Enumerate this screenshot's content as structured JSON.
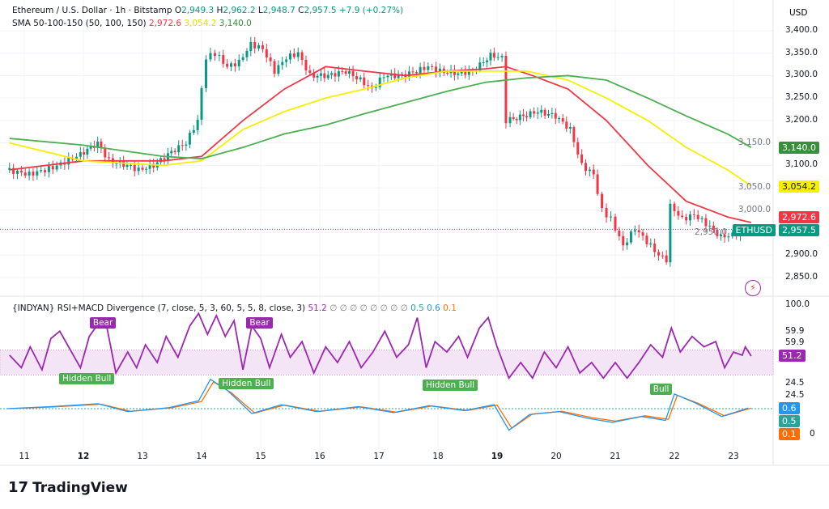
{
  "header": {
    "symbol": "Ethereum / U.S. Dollar · 1h · Bitstamp",
    "o_label": "O",
    "o": "2,949.3",
    "h_label": "H",
    "h": "2,962.2",
    "l_label": "L",
    "l": "2,948.7",
    "c_label": "C",
    "c": "2,957.5",
    "change": "+7.9 (+0.27%)",
    "sma_title": "SMA 50-100-150 (50, 100, 150)",
    "sma50": "2,972.6",
    "sma100": "3,054.2",
    "sma150": "3,140.0",
    "currency": "USD"
  },
  "indicator": {
    "title": "{INDYAN} RSI+MACD Divergence (7, close, 5, 3, 60, 5, 5, 8, close, 3)",
    "rsi": "51.2",
    "placeholders": "∅ ∅ ∅ ∅ ∅ ∅ ∅ ∅",
    "v1": "0.5",
    "v2": "0.6",
    "v3": "0.1"
  },
  "tags": {
    "sma150": "3,140.0",
    "sma100": "3,054.2",
    "sma50": "2,972.6",
    "symbol": "ETHUSD",
    "price": "2,957.5",
    "rsi": "51.2",
    "macd1": "0.6",
    "macd2": "0.5",
    "macd3": "0.1"
  },
  "colors": {
    "up": "#089981",
    "down": "#f23645",
    "sma50": "#f23645",
    "sma100": "#f5f000",
    "sma150": "#4caf50",
    "rsi": "#9c27b0",
    "macd": "#2196f3",
    "signal": "#ff6d00"
  },
  "footer": {
    "brand": "TradingView"
  },
  "chart_data": {
    "type": "candlestick",
    "price_axis": {
      "ticks": [
        "3,400.0",
        "3,350.0",
        "3,300.0",
        "3,250.0",
        "3,200.0",
        "3,150.0",
        "3,100.0",
        "3,050.0",
        "3,000.0",
        "2,950.0",
        "2,900.0",
        "2,850.0"
      ],
      "range": [
        2830,
        3420
      ]
    },
    "x_axis": {
      "ticks": [
        "11",
        "12",
        "13",
        "14",
        "15",
        "16",
        "17",
        "18",
        "19",
        "20",
        "21",
        "22",
        "23"
      ],
      "range": [
        10.7,
        23.35
      ]
    },
    "close": [
      [
        10.75,
        3090
      ],
      [
        11.15,
        3080
      ],
      [
        11.55,
        3095
      ],
      [
        11.95,
        3120
      ],
      [
        12.3,
        3150
      ],
      [
        12.5,
        3110
      ],
      [
        12.8,
        3100
      ],
      [
        13.0,
        3090
      ],
      [
        13.25,
        3100
      ],
      [
        13.55,
        3130
      ],
      [
        13.8,
        3150
      ],
      [
        14.0,
        3200
      ],
      [
        14.15,
        3340
      ],
      [
        14.3,
        3350
      ],
      [
        14.5,
        3320
      ],
      [
        14.7,
        3330
      ],
      [
        14.9,
        3370
      ],
      [
        15.1,
        3360
      ],
      [
        15.3,
        3310
      ],
      [
        15.5,
        3340
      ],
      [
        15.7,
        3350
      ],
      [
        15.9,
        3300
      ],
      [
        16.2,
        3300
      ],
      [
        16.5,
        3310
      ],
      [
        16.75,
        3290
      ],
      [
        16.95,
        3270
      ],
      [
        17.15,
        3300
      ],
      [
        17.45,
        3300
      ],
      [
        17.7,
        3310
      ],
      [
        17.9,
        3320
      ],
      [
        18.1,
        3310
      ],
      [
        18.4,
        3305
      ],
      [
        18.65,
        3310
      ],
      [
        18.95,
        3345
      ],
      [
        19.15,
        3340
      ],
      [
        19.22,
        3200
      ],
      [
        19.5,
        3210
      ],
      [
        19.75,
        3220
      ],
      [
        20.05,
        3210
      ],
      [
        20.3,
        3180
      ],
      [
        20.5,
        3100
      ],
      [
        20.7,
        3080
      ],
      [
        20.85,
        3000
      ],
      [
        21.0,
        2980
      ],
      [
        21.2,
        2920
      ],
      [
        21.4,
        2960
      ],
      [
        21.6,
        2930
      ],
      [
        21.8,
        2900
      ],
      [
        21.93,
        2890
      ],
      [
        22.0,
        3010
      ],
      [
        22.2,
        2980
      ],
      [
        22.4,
        2990
      ],
      [
        22.6,
        2970
      ],
      [
        22.85,
        2940
      ],
      [
        23.05,
        2945
      ],
      [
        23.25,
        2957.5
      ]
    ],
    "series": [
      {
        "name": "SMA 50",
        "values": [
          [
            10.75,
            3090
          ],
          [
            12.0,
            3110
          ],
          [
            13.35,
            3110
          ],
          [
            14.0,
            3120
          ],
          [
            14.7,
            3200
          ],
          [
            15.4,
            3270
          ],
          [
            16.1,
            3320
          ],
          [
            16.75,
            3310
          ],
          [
            17.45,
            3300
          ],
          [
            18.15,
            3310
          ],
          [
            18.8,
            3315
          ],
          [
            19.15,
            3320
          ],
          [
            19.6,
            3300
          ],
          [
            20.2,
            3270
          ],
          [
            20.85,
            3200
          ],
          [
            21.55,
            3100
          ],
          [
            22.2,
            3020
          ],
          [
            22.9,
            2985
          ],
          [
            23.3,
            2972.6
          ]
        ]
      },
      {
        "name": "SMA 100",
        "values": [
          [
            10.75,
            3150
          ],
          [
            12.0,
            3110
          ],
          [
            13.35,
            3100
          ],
          [
            14.0,
            3110
          ],
          [
            14.7,
            3180
          ],
          [
            15.4,
            3220
          ],
          [
            16.1,
            3250
          ],
          [
            16.75,
            3270
          ],
          [
            17.45,
            3295
          ],
          [
            18.15,
            3310
          ],
          [
            18.8,
            3310
          ],
          [
            19.5,
            3310
          ],
          [
            20.2,
            3290
          ],
          [
            20.85,
            3250
          ],
          [
            21.55,
            3200
          ],
          [
            22.2,
            3140
          ],
          [
            22.9,
            3090
          ],
          [
            23.3,
            3054.2
          ]
        ]
      },
      {
        "name": "SMA 150",
        "values": [
          [
            10.75,
            3160
          ],
          [
            12.0,
            3145
          ],
          [
            13.35,
            3120
          ],
          [
            14.0,
            3115
          ],
          [
            14.7,
            3140
          ],
          [
            15.4,
            3170
          ],
          [
            16.1,
            3190
          ],
          [
            16.75,
            3215
          ],
          [
            17.45,
            3240
          ],
          [
            18.15,
            3265
          ],
          [
            18.8,
            3285
          ],
          [
            19.5,
            3295
          ],
          [
            20.2,
            3300
          ],
          [
            20.85,
            3290
          ],
          [
            21.55,
            3250
          ],
          [
            22.2,
            3210
          ],
          [
            22.9,
            3170
          ],
          [
            23.3,
            3140
          ]
        ]
      }
    ],
    "rsi": {
      "axis_ticks": [
        "100.0",
        "59.9",
        "59.9",
        "24.5",
        "24.5"
      ],
      "band": [
        33,
        57
      ],
      "values": [
        [
          10.75,
          52
        ],
        [
          10.95,
          40
        ],
        [
          11.1,
          60
        ],
        [
          11.3,
          38
        ],
        [
          11.45,
          68
        ],
        [
          11.6,
          75
        ],
        [
          11.8,
          55
        ],
        [
          11.95,
          40
        ],
        [
          12.1,
          70
        ],
        [
          12.25,
          82
        ],
        [
          12.4,
          78
        ],
        [
          12.55,
          35
        ],
        [
          12.75,
          55
        ],
        [
          12.9,
          40
        ],
        [
          13.05,
          62
        ],
        [
          13.25,
          45
        ],
        [
          13.4,
          70
        ],
        [
          13.6,
          50
        ],
        [
          13.8,
          80
        ],
        [
          13.95,
          92
        ],
        [
          14.1,
          72
        ],
        [
          14.25,
          90
        ],
        [
          14.4,
          70
        ],
        [
          14.55,
          85
        ],
        [
          14.7,
          38
        ],
        [
          14.85,
          80
        ],
        [
          15.0,
          68
        ],
        [
          15.15,
          40
        ],
        [
          15.35,
          72
        ],
        [
          15.5,
          50
        ],
        [
          15.7,
          65
        ],
        [
          15.9,
          35
        ],
        [
          16.1,
          60
        ],
        [
          16.3,
          45
        ],
        [
          16.5,
          65
        ],
        [
          16.7,
          40
        ],
        [
          16.9,
          55
        ],
        [
          17.1,
          75
        ],
        [
          17.3,
          50
        ],
        [
          17.5,
          62
        ],
        [
          17.65,
          88
        ],
        [
          17.8,
          40
        ],
        [
          17.95,
          65
        ],
        [
          18.15,
          55
        ],
        [
          18.35,
          70
        ],
        [
          18.5,
          50
        ],
        [
          18.7,
          78
        ],
        [
          18.85,
          88
        ],
        [
          19.0,
          60
        ],
        [
          19.2,
          30
        ],
        [
          19.4,
          45
        ],
        [
          19.6,
          30
        ],
        [
          19.8,
          55
        ],
        [
          20.0,
          40
        ],
        [
          20.2,
          60
        ],
        [
          20.4,
          35
        ],
        [
          20.6,
          45
        ],
        [
          20.8,
          30
        ],
        [
          21.0,
          45
        ],
        [
          21.2,
          30
        ],
        [
          21.4,
          45
        ],
        [
          21.6,
          62
        ],
        [
          21.8,
          50
        ],
        [
          21.95,
          78
        ],
        [
          22.1,
          55
        ],
        [
          22.3,
          70
        ],
        [
          22.5,
          60
        ],
        [
          22.7,
          65
        ],
        [
          22.85,
          40
        ],
        [
          23.0,
          55
        ],
        [
          23.15,
          52
        ],
        [
          23.2,
          60
        ],
        [
          23.3,
          51.2
        ]
      ]
    },
    "macd": {
      "axis_ticks": [
        "0"
      ],
      "values": [
        [
          10.75,
          0
        ],
        [
          11.5,
          2
        ],
        [
          12.3,
          5
        ],
        [
          12.8,
          -3
        ],
        [
          13.5,
          1
        ],
        [
          14.0,
          8
        ],
        [
          14.2,
          30
        ],
        [
          14.5,
          18
        ],
        [
          14.9,
          -5
        ],
        [
          15.4,
          4
        ],
        [
          16.0,
          -3
        ],
        [
          16.7,
          2
        ],
        [
          17.3,
          -4
        ],
        [
          17.9,
          3
        ],
        [
          18.5,
          -2
        ],
        [
          19.0,
          4
        ],
        [
          19.25,
          -22
        ],
        [
          19.6,
          -6
        ],
        [
          20.1,
          -3
        ],
        [
          20.6,
          -10
        ],
        [
          21.0,
          -14
        ],
        [
          21.5,
          -8
        ],
        [
          21.9,
          -12
        ],
        [
          22.05,
          15
        ],
        [
          22.4,
          6
        ],
        [
          22.85,
          -8
        ],
        [
          23.3,
          0.6
        ]
      ]
    },
    "annotations": [
      {
        "text": "Bear",
        "day": 12.3,
        "rsi": 90
      },
      {
        "text": "Bear",
        "day": 14.95,
        "rsi": 88
      },
      {
        "text": "Hidden Bull",
        "day": 12.0,
        "rsi": 38
      },
      {
        "text": "Hidden Bull",
        "day": 14.7,
        "rsi": 33
      },
      {
        "text": "Hidden Bull",
        "day": 18.15,
        "rsi": 32
      },
      {
        "text": "Bull",
        "day": 21.75,
        "rsi": 28
      }
    ]
  }
}
